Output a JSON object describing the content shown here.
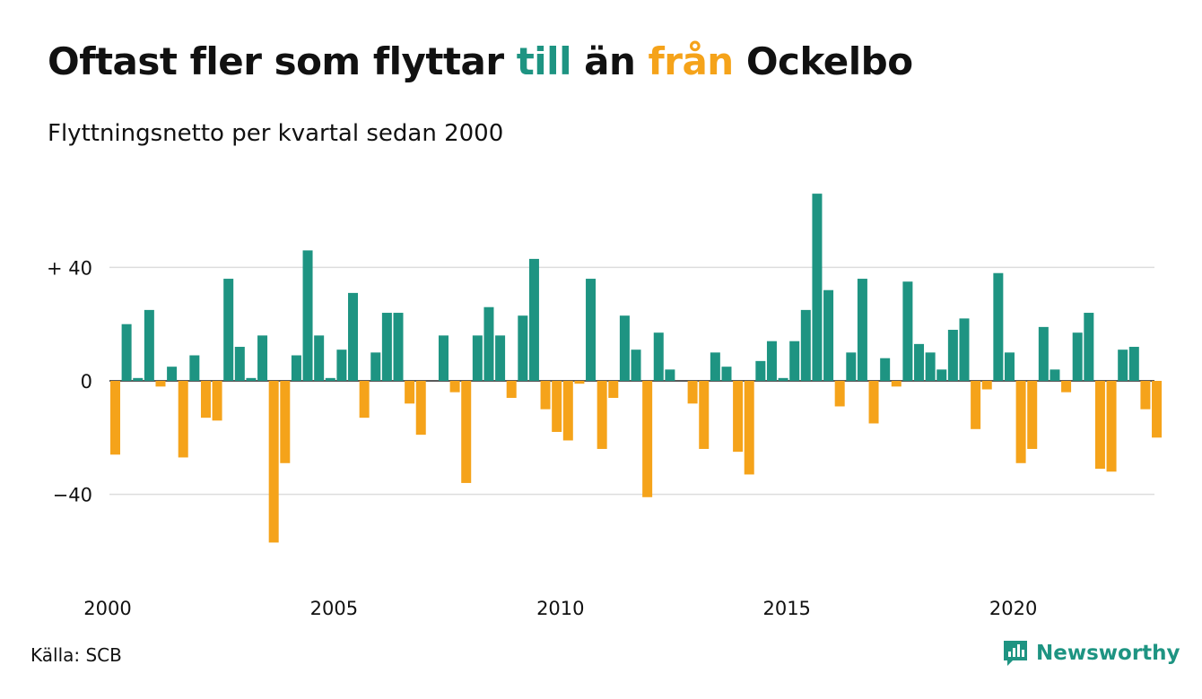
{
  "title": {
    "part1": "Oftast fler som flyttar ",
    "word_in": "till",
    "part2": " än ",
    "word_out": "från",
    "part3": " Ockelbo"
  },
  "subtitle": "Flyttningsnetto per kvartal sedan 2000",
  "source": "Källa: SCB",
  "brand": {
    "name": "Newsworthy",
    "icon": "newsworthy-logo-icon"
  },
  "colors": {
    "positive": "#1e9482",
    "negative": "#f5a31a",
    "grid": "#dddddd",
    "text": "#111111"
  },
  "chart_data": {
    "type": "bar",
    "title": "Oftast fler som flyttar till än från Ockelbo",
    "subtitle": "Flyttningsnetto per kvartal sedan 2000",
    "xlabel": "",
    "ylabel": "",
    "ylim": [
      -60,
      68
    ],
    "x_start_year": 2000,
    "quarters_per_year": 4,
    "y_ticks": [
      {
        "value": 40,
        "label": "+ 40"
      },
      {
        "value": 0,
        "label": "0"
      },
      {
        "value": -40,
        "label": "−40"
      }
    ],
    "x_ticks": [
      {
        "year": 2000,
        "label": "2000"
      },
      {
        "year": 2005,
        "label": "2005"
      },
      {
        "year": 2010,
        "label": "2010"
      },
      {
        "year": 2015,
        "label": "2015"
      },
      {
        "year": 2020,
        "label": "2020"
      }
    ],
    "grid": true,
    "legend": "none",
    "series": [
      {
        "values": [
          -26,
          20,
          1,
          25,
          -2,
          5,
          -27,
          9,
          -13,
          -14,
          36,
          12,
          1,
          16,
          -57,
          -29,
          9,
          46,
          16,
          1,
          11,
          31,
          -13,
          10,
          24,
          24,
          -8,
          -19,
          0,
          16,
          -4,
          -36,
          16,
          26,
          16,
          -6,
          23,
          43,
          -10,
          -18,
          -21,
          -1,
          36,
          -24,
          -6,
          23,
          11,
          -41,
          17,
          4,
          0,
          -8,
          -24,
          10,
          5,
          -25,
          -33,
          7,
          14,
          1,
          14,
          25,
          66,
          32,
          -9,
          10,
          36,
          -15,
          8,
          -2,
          35,
          13,
          10,
          4,
          18,
          22,
          -17,
          -3,
          38,
          10,
          -29,
          -24,
          19,
          4,
          -4,
          17,
          24,
          -31,
          -32,
          11,
          12,
          -10,
          -20
        ]
      }
    ]
  }
}
